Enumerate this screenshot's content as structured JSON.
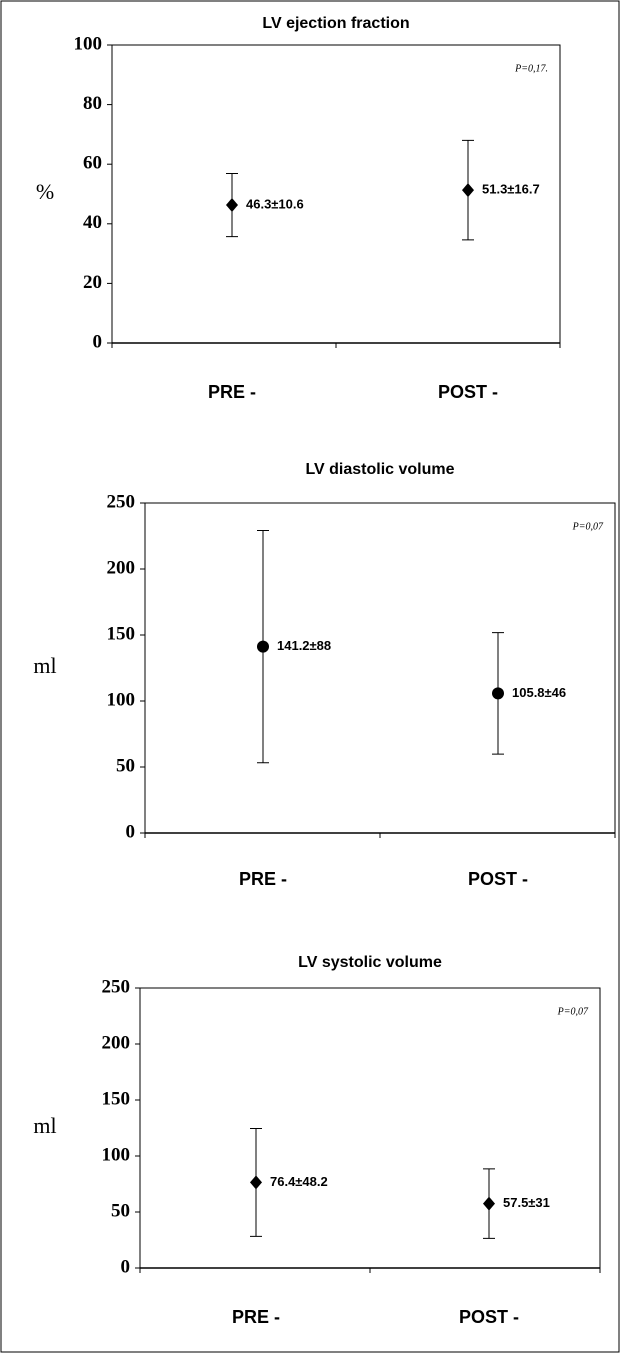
{
  "chart_data": [
    {
      "type": "errorbar",
      "title": "LV ejection fraction",
      "ylabel": "%",
      "annotation": "P=0,17.",
      "categories": [
        "PRE -",
        "POST -"
      ],
      "values": [
        46.3,
        51.3
      ],
      "errors": [
        10.6,
        16.7
      ],
      "value_labels": [
        "46.3±10.6",
        "51.3±16.7"
      ],
      "marker": "diamond",
      "color": "#000000",
      "ylim": [
        0,
        100
      ],
      "yticks": [
        0,
        20,
        40,
        60,
        80,
        100
      ]
    },
    {
      "type": "errorbar",
      "title": "LV diastolic volume",
      "ylabel": "ml",
      "annotation": "P=0,07",
      "categories": [
        "PRE -",
        "POST -"
      ],
      "values": [
        141.2,
        105.8
      ],
      "errors": [
        88,
        46
      ],
      "value_labels": [
        "141.2±88",
        "105.8±46"
      ],
      "marker": "circle",
      "color": "#000000",
      "ylim": [
        0,
        250
      ],
      "yticks": [
        0,
        50,
        100,
        150,
        200,
        250
      ]
    },
    {
      "type": "errorbar",
      "title": "LV systolic volume",
      "ylabel": "ml",
      "annotation": "P=0,07",
      "categories": [
        "PRE -",
        "POST -"
      ],
      "values": [
        76.4,
        57.5
      ],
      "errors": [
        48.2,
        31
      ],
      "value_labels": [
        "76.4±48.2",
        "57.5±31"
      ],
      "marker": "diamond",
      "color": "#000000",
      "ylim": [
        0,
        250
      ],
      "yticks": [
        0,
        50,
        100,
        150,
        200,
        250
      ]
    }
  ]
}
